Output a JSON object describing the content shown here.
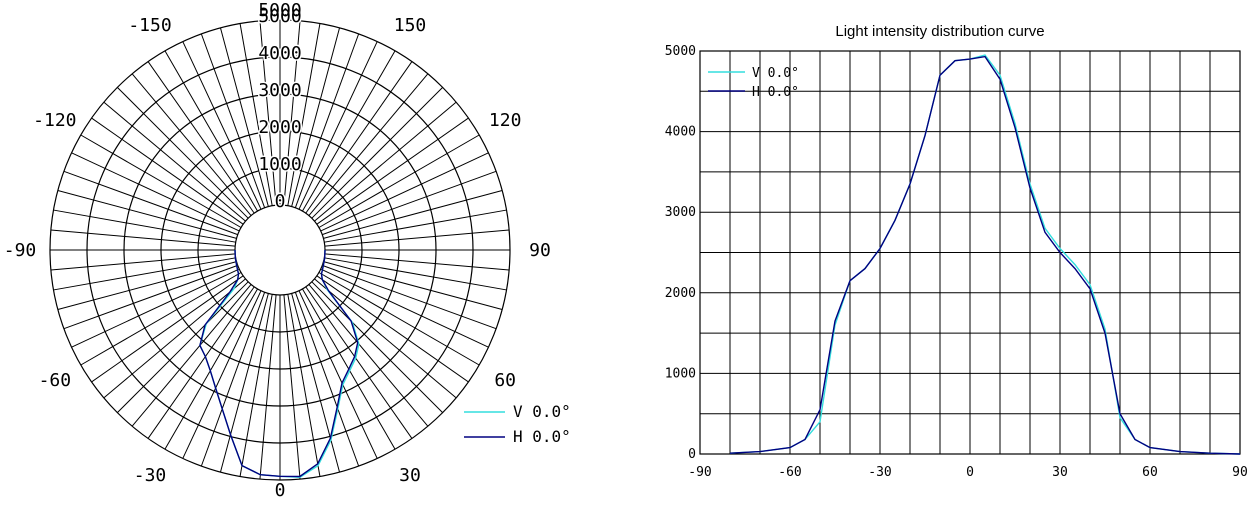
{
  "chart_data": [
    {
      "type": "polar",
      "radial_ticks": [
        "0",
        "1000",
        "2000",
        "3000",
        "4000",
        "5000"
      ],
      "angle_labels": [
        {
          "angle": 0,
          "text": "0"
        },
        {
          "angle": 30,
          "text": "30"
        },
        {
          "angle": -30,
          "text": "-30"
        },
        {
          "angle": 60,
          "text": "60"
        },
        {
          "angle": -60,
          "text": "-60"
        },
        {
          "angle": 90,
          "text": "90"
        },
        {
          "angle": -90,
          "text": "-90"
        },
        {
          "angle": 120,
          "text": "120"
        },
        {
          "angle": -120,
          "text": "-120"
        },
        {
          "angle": 150,
          "text": "150"
        },
        {
          "angle": -150,
          "text": "-150"
        },
        {
          "angle": 180,
          "text": "5000"
        }
      ],
      "rlim": [
        0,
        5000
      ],
      "grid": true,
      "legend_position": "bottom-right",
      "series": [
        {
          "name": "V 0.0°",
          "color": "#33dddd",
          "angles": [
            -90,
            -80,
            -70,
            -60,
            -55,
            -50,
            -45,
            -40,
            -35,
            -30,
            -25,
            -20,
            -15,
            -10,
            -5,
            0,
            5,
            10,
            15,
            20,
            25,
            30,
            35,
            40,
            45,
            50,
            55,
            60,
            70,
            80,
            90
          ],
          "values": [
            0,
            10,
            30,
            80,
            180,
            400,
            1600,
            2150,
            2300,
            2550,
            2900,
            3350,
            3950,
            4700,
            4880,
            4900,
            4950,
            4700,
            4100,
            3350,
            2800,
            2550,
            2350,
            2100,
            1550,
            450,
            180,
            80,
            30,
            10,
            0
          ]
        },
        {
          "name": "H 0.0°",
          "color": "#000080",
          "angles": [
            -90,
            -80,
            -70,
            -60,
            -55,
            -50,
            -45,
            -40,
            -35,
            -30,
            -25,
            -20,
            -15,
            -10,
            -5,
            0,
            5,
            10,
            15,
            20,
            25,
            30,
            35,
            40,
            45,
            50,
            55,
            60,
            70,
            80,
            90
          ],
          "values": [
            0,
            10,
            30,
            80,
            180,
            550,
            1650,
            2150,
            2300,
            2550,
            2900,
            3350,
            3950,
            4700,
            4880,
            4900,
            4930,
            4650,
            4050,
            3300,
            2750,
            2500,
            2300,
            2050,
            1500,
            500,
            180,
            80,
            30,
            10,
            0
          ]
        }
      ]
    },
    {
      "type": "line",
      "title": "Light intensity distribution curve",
      "x_ticks": [
        "-90",
        "-60",
        "-30",
        "0",
        "30",
        "60",
        "90"
      ],
      "y_ticks": [
        "0",
        "1000",
        "2000",
        "3000",
        "4000",
        "5000"
      ],
      "xlim": [
        -90,
        90
      ],
      "ylim": [
        0,
        5000
      ],
      "grid": true,
      "legend_position": "top-left",
      "series": [
        {
          "name": "V 0.0°",
          "color": "#33dddd",
          "x": [
            -80,
            -70,
            -60,
            -55,
            -50,
            -45,
            -40,
            -35,
            -30,
            -25,
            -20,
            -15,
            -10,
            -5,
            0,
            5,
            10,
            15,
            20,
            25,
            30,
            35,
            40,
            45,
            50,
            55,
            60,
            70,
            80,
            90
          ],
          "y": [
            10,
            30,
            80,
            180,
            400,
            1600,
            2150,
            2300,
            2550,
            2900,
            3350,
            3950,
            4700,
            4880,
            4900,
            4950,
            4700,
            4100,
            3350,
            2800,
            2550,
            2350,
            2100,
            1550,
            450,
            180,
            80,
            30,
            10,
            0
          ]
        },
        {
          "name": "H 0.0°",
          "color": "#000080",
          "x": [
            -80,
            -70,
            -60,
            -55,
            -50,
            -45,
            -40,
            -35,
            -30,
            -25,
            -20,
            -15,
            -10,
            -5,
            0,
            5,
            10,
            15,
            20,
            25,
            30,
            35,
            40,
            45,
            50,
            55,
            60,
            70,
            80,
            90
          ],
          "y": [
            10,
            30,
            80,
            180,
            550,
            1650,
            2150,
            2300,
            2550,
            2900,
            3350,
            3950,
            4700,
            4880,
            4900,
            4930,
            4650,
            4050,
            3300,
            2750,
            2500,
            2300,
            2050,
            1500,
            500,
            180,
            80,
            30,
            10,
            0
          ]
        }
      ]
    }
  ]
}
